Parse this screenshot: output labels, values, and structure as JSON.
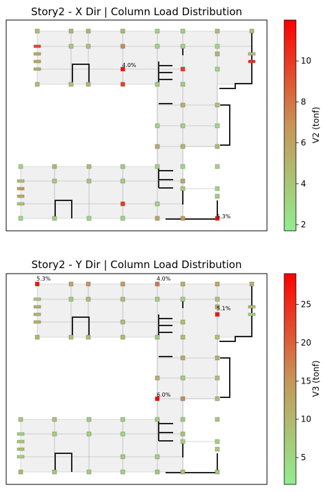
{
  "colors": {
    "low": "#90ee90",
    "high": "#ff0000",
    "floor": "#f0f0f0",
    "grid": "#a9a9a9",
    "wall": "#222222",
    "frame": "#000000"
  },
  "chart_data": [
    {
      "type": "heatmap",
      "title": "Story2 - X Dir | Column Load Distribution",
      "colorbar": {
        "label": "V2 (tonf)",
        "range": [
          1.7,
          12
        ],
        "ticks": [
          2,
          4,
          6,
          8,
          10
        ]
      },
      "annotations": [
        {
          "text": "4.0%",
          "col": "x178",
          "row": "y97"
        },
        {
          "text": "5.3%",
          "col": "x315",
          "row": "y316"
        }
      ],
      "columns": [
        {
          "col": "x54",
          "row": "y45",
          "v": 4.5
        },
        {
          "col": "x103",
          "row": "y45",
          "v": 4.8
        },
        {
          "col": "x128",
          "row": "y45",
          "v": 5.0
        },
        {
          "col": "x178",
          "row": "y45",
          "v": 4.6
        },
        {
          "col": "x228",
          "row": "y45",
          "v": 3.2
        },
        {
          "col": "x265",
          "row": "y45",
          "v": 3.5
        },
        {
          "col": "x315",
          "row": "y45",
          "v": 4.5
        },
        {
          "col": "x365",
          "row": "y45",
          "v": 4.2
        },
        {
          "col": "x54",
          "row": "y67",
          "v": 9.5
        },
        {
          "col": "x103",
          "row": "y67",
          "v": 3.8
        },
        {
          "col": "x128",
          "row": "y67",
          "v": 4.0
        },
        {
          "col": "x178",
          "row": "y67",
          "v": 7.2
        },
        {
          "col": "x228",
          "row": "y67",
          "v": 3.0
        },
        {
          "col": "x265",
          "row": "y67",
          "v": 3.2
        },
        {
          "col": "x315",
          "row": "y67",
          "v": 2.8
        },
        {
          "col": "x54",
          "row": "y78",
          "v": 5.5
        },
        {
          "col": "x315",
          "row": "y78",
          "v": 5.0
        },
        {
          "col": "x365",
          "row": "y78",
          "v": 4.5
        },
        {
          "col": "x54",
          "row": "y89",
          "v": 5.8
        },
        {
          "col": "x365",
          "row": "y89",
          "v": 10.5
        },
        {
          "col": "x54",
          "row": "y100",
          "v": 5.5
        },
        {
          "col": "x178",
          "row": "y100",
          "v": 11.5
        },
        {
          "col": "x265",
          "row": "y100",
          "v": 10.0
        },
        {
          "col": "x315",
          "row": "y100",
          "v": 3.0
        },
        {
          "col": "x54",
          "row": "y122",
          "v": 4.5
        },
        {
          "col": "x103",
          "row": "y122",
          "v": 4.2
        },
        {
          "col": "x128",
          "row": "y122",
          "v": 4.8
        },
        {
          "col": "x178",
          "row": "y122",
          "v": 9.8
        },
        {
          "col": "x228",
          "row": "y122",
          "v": 3.5
        },
        {
          "col": "x265",
          "row": "y122",
          "v": 3.8
        },
        {
          "col": "x265",
          "row": "y152",
          "v": 5.2
        },
        {
          "col": "x315",
          "row": "y152",
          "v": 4.0
        },
        {
          "col": "x228",
          "row": "y182",
          "v": 3.0
        },
        {
          "col": "x265",
          "row": "y182",
          "v": 3.2
        },
        {
          "col": "x315",
          "row": "y182",
          "v": 3.0
        },
        {
          "col": "x228",
          "row": "y212",
          "v": 5.5
        },
        {
          "col": "x265",
          "row": "y212",
          "v": 5.0
        },
        {
          "col": "x315",
          "row": "y212",
          "v": 4.5
        },
        {
          "col": "x30",
          "row": "y241",
          "v": 3.0
        },
        {
          "col": "x79",
          "row": "y241",
          "v": 4.8
        },
        {
          "col": "x129",
          "row": "y241",
          "v": 4.5
        },
        {
          "col": "x178",
          "row": "y241",
          "v": 3.5
        },
        {
          "col": "x228",
          "row": "y241",
          "v": 3.2
        },
        {
          "col": "x265",
          "row": "y241",
          "v": 3.0
        },
        {
          "col": "x315",
          "row": "y241",
          "v": 3.0
        },
        {
          "col": "x30",
          "row": "y262",
          "v": 4.2
        },
        {
          "col": "x79",
          "row": "y262",
          "v": 3.8
        },
        {
          "col": "x129",
          "row": "y262",
          "v": 3.8
        },
        {
          "col": "x178",
          "row": "y262",
          "v": 3.5
        },
        {
          "col": "x265",
          "row": "y262",
          "v": 5.5
        },
        {
          "col": "x30",
          "row": "y273",
          "v": 6.5
        },
        {
          "col": "x265",
          "row": "y273",
          "v": 3.8
        },
        {
          "col": "x315",
          "row": "y273",
          "v": 3.0
        },
        {
          "col": "x30",
          "row": "y284",
          "v": 5.5
        },
        {
          "col": "x315",
          "row": "y284",
          "v": 3.5
        },
        {
          "col": "x30",
          "row": "y295",
          "v": 4.0
        },
        {
          "col": "x178",
          "row": "y295",
          "v": 10.0
        },
        {
          "col": "x228",
          "row": "y295",
          "v": 3.0
        },
        {
          "col": "x30",
          "row": "y316",
          "v": 3.0
        },
        {
          "col": "x79",
          "row": "y316",
          "v": 3.5
        },
        {
          "col": "x129",
          "row": "y316",
          "v": 3.0
        },
        {
          "col": "x178",
          "row": "y316",
          "v": 3.0
        },
        {
          "col": "x228",
          "row": "y316",
          "v": 6.0
        },
        {
          "col": "x265",
          "row": "y316",
          "v": 6.5
        },
        {
          "col": "x315",
          "row": "y316",
          "v": 11.8
        }
      ]
    },
    {
      "type": "heatmap",
      "title": "Story2 - Y Dir | Column Load Distribution",
      "colorbar": {
        "label": "V3 (tonf)",
        "range": [
          1.5,
          29
        ],
        "ticks": [
          5,
          10,
          15,
          20,
          25
        ]
      },
      "annotations": [
        {
          "text": "5.3%",
          "col": "x54",
          "row": "y406"
        },
        {
          "text": "4.0%",
          "col": "x228",
          "row": "y406"
        },
        {
          "text": "5.1%",
          "col": "x315",
          "row": "y449"
        },
        {
          "text": "6.0%",
          "col": "x228",
          "row": "y574"
        }
      ],
      "columns": [
        {
          "col": "x54",
          "row": "y411",
          "v": 27.0
        },
        {
          "col": "x103",
          "row": "y411",
          "v": 12.0
        },
        {
          "col": "x128",
          "row": "y411",
          "v": 15.0
        },
        {
          "col": "x178",
          "row": "y411",
          "v": 14.0
        },
        {
          "col": "x228",
          "row": "y411",
          "v": 18.0
        },
        {
          "col": "x265",
          "row": "y411",
          "v": 11.0
        },
        {
          "col": "x315",
          "row": "y411",
          "v": 12.0
        },
        {
          "col": "x365",
          "row": "y411",
          "v": 11.0
        },
        {
          "col": "x54",
          "row": "y433",
          "v": 7.0
        },
        {
          "col": "x103",
          "row": "y433",
          "v": 7.0
        },
        {
          "col": "x128",
          "row": "y433",
          "v": 9.0
        },
        {
          "col": "x178",
          "row": "y433",
          "v": 8.0
        },
        {
          "col": "x228",
          "row": "y433",
          "v": 6.0
        },
        {
          "col": "x265",
          "row": "y433",
          "v": 6.0
        },
        {
          "col": "x315",
          "row": "y433",
          "v": 8.0
        },
        {
          "col": "x54",
          "row": "y444",
          "v": 11.0
        },
        {
          "col": "x315",
          "row": "y444",
          "v": 12.0
        },
        {
          "col": "x365",
          "row": "y444",
          "v": 9.0
        },
        {
          "col": "x54",
          "row": "y455",
          "v": 10.0
        },
        {
          "col": "x315",
          "row": "y455",
          "v": 27.0
        },
        {
          "col": "x365",
          "row": "y455",
          "v": 6.0
        },
        {
          "col": "x54",
          "row": "y466",
          "v": 11.0
        },
        {
          "col": "x178",
          "row": "y466",
          "v": 9.0
        },
        {
          "col": "x265",
          "row": "y466",
          "v": 9.0
        },
        {
          "col": "x54",
          "row": "y488",
          "v": 10.0
        },
        {
          "col": "x103",
          "row": "y488",
          "v": 8.0
        },
        {
          "col": "x128",
          "row": "y488",
          "v": 9.0
        },
        {
          "col": "x178",
          "row": "y488",
          "v": 10.0
        },
        {
          "col": "x228",
          "row": "y488",
          "v": 7.0
        },
        {
          "col": "x265",
          "row": "y488",
          "v": 9.0
        },
        {
          "col": "x315",
          "row": "y488",
          "v": 8.0
        },
        {
          "col": "x265",
          "row": "y518",
          "v": 12.0
        },
        {
          "col": "x315",
          "row": "y518",
          "v": 11.0
        },
        {
          "col": "x228",
          "row": "y547",
          "v": 11.0
        },
        {
          "col": "x265",
          "row": "y547",
          "v": 7.0
        },
        {
          "col": "x315",
          "row": "y547",
          "v": 9.0
        },
        {
          "col": "x228",
          "row": "y577",
          "v": 28.5
        },
        {
          "col": "x265",
          "row": "y577",
          "v": 16.0
        },
        {
          "col": "x315",
          "row": "y577",
          "v": 9.0
        },
        {
          "col": "x30",
          "row": "y607",
          "v": 7.0
        },
        {
          "col": "x79",
          "row": "y607",
          "v": 8.0
        },
        {
          "col": "x129",
          "row": "y607",
          "v": 7.0
        },
        {
          "col": "x178",
          "row": "y607",
          "v": 6.0
        },
        {
          "col": "x228",
          "row": "y607",
          "v": 7.0
        },
        {
          "col": "x265",
          "row": "y607",
          "v": 7.0
        },
        {
          "col": "x315",
          "row": "y607",
          "v": 7.0
        },
        {
          "col": "x30",
          "row": "y628",
          "v": 6.0
        },
        {
          "col": "x79",
          "row": "y628",
          "v": 6.0
        },
        {
          "col": "x129",
          "row": "y628",
          "v": 6.0
        },
        {
          "col": "x178",
          "row": "y628",
          "v": 5.0
        },
        {
          "col": "x265",
          "row": "y628",
          "v": 8.0
        },
        {
          "col": "x30",
          "row": "y639",
          "v": 7.0
        },
        {
          "col": "x265",
          "row": "y639",
          "v": 6.0
        },
        {
          "col": "x315",
          "row": "y639",
          "v": 6.0
        },
        {
          "col": "x30",
          "row": "y650",
          "v": 9.0
        },
        {
          "col": "x315",
          "row": "y650",
          "v": 7.0
        },
        {
          "col": "x30",
          "row": "y661",
          "v": 6.0
        },
        {
          "col": "x178",
          "row": "y661",
          "v": 7.0
        },
        {
          "col": "x228",
          "row": "y661",
          "v": 6.0
        },
        {
          "col": "x30",
          "row": "y683",
          "v": 10.0
        },
        {
          "col": "x79",
          "row": "y683",
          "v": 8.0
        },
        {
          "col": "x129",
          "row": "y683",
          "v": 7.0
        },
        {
          "col": "x178",
          "row": "y683",
          "v": 6.0
        },
        {
          "col": "x228",
          "row": "y683",
          "v": 8.0
        },
        {
          "col": "x265",
          "row": "y683",
          "v": 9.0
        },
        {
          "col": "x315",
          "row": "y683",
          "v": 8.0
        }
      ]
    }
  ]
}
